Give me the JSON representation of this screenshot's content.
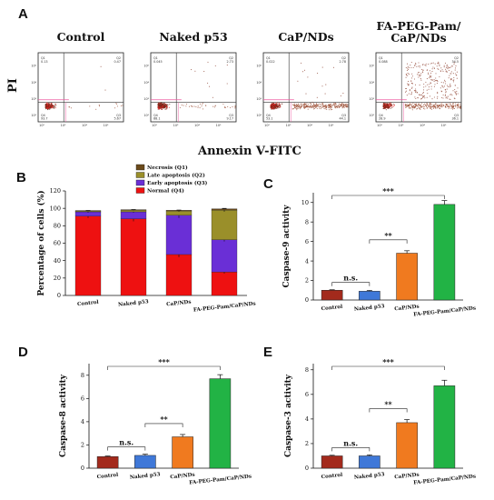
{
  "panels": {
    "A": "A",
    "B": "B",
    "C": "C",
    "D": "D",
    "E": "E"
  },
  "flow": {
    "x_label": "Annexin V-FITC",
    "y_label": "PI",
    "quadrant_labels": [
      "Q1",
      "Q2",
      "Q3",
      "Q4"
    ],
    "axis_ticks": [
      "10²",
      "10³",
      "10⁴",
      "10⁵"
    ],
    "plots": [
      {
        "title": "Control",
        "q1": "0.13",
        "q2": "0.47",
        "q3": "5.67",
        "q4": "93.7"
      },
      {
        "title": "Naked p53",
        "q1": "0.045",
        "q2": "2.73",
        "q3": "9.17",
        "q4": "88.1"
      },
      {
        "title": "CaP/NDs",
        "q1": "0.022",
        "q2": "2.78",
        "q3": "44.1",
        "q4": "53.1"
      },
      {
        "title": "FA-PEG-Pam/\nCaP/NDs",
        "q1": "0.088",
        "q2": "34.5",
        "q3": "36.1",
        "q4": "28.9"
      }
    ]
  },
  "colors": {
    "necrosis": "#6b4a1a",
    "late": "#9a8f2a",
    "early": "#6a2fd6",
    "normal": "#ee1111",
    "c1": "#a32a1c",
    "c2": "#3f78d8",
    "c3": "#f07a1f",
    "c4": "#22b345"
  },
  "chart_data": [
    {
      "type": "bar",
      "stacked": true,
      "panel": "B",
      "ylabel": "Percentage of cells (%)",
      "ylim": [
        0,
        120
      ],
      "yticks": [
        "0",
        "20",
        "40",
        "60",
        "80",
        "100",
        "120"
      ],
      "categories": [
        "Control",
        "Naked p53",
        "CaP/NDs",
        "FA-PEG-Pam/CaP/NDs"
      ],
      "series": [
        {
          "name": "Normal (Q4)",
          "values": [
            91,
            88,
            47,
            27
          ],
          "errors": [
            2,
            3,
            3,
            2
          ]
        },
        {
          "name": "Early apoptosis (Q3)",
          "values": [
            5,
            8,
            45,
            37
          ],
          "errors": [
            1,
            1,
            3,
            2
          ]
        },
        {
          "name": "Late apoptosis (Q2)",
          "values": [
            1,
            2,
            5,
            34
          ],
          "errors": [
            0.3,
            0.5,
            1,
            2
          ]
        },
        {
          "name": "Necrosis (Q1)",
          "values": [
            0.5,
            0.5,
            0.8,
            1.5
          ],
          "errors": [
            0.1,
            0.1,
            0.1,
            0.2
          ]
        }
      ],
      "legend": "top"
    },
    {
      "type": "bar",
      "panel": "C",
      "ylabel": "Caspase-9 activity",
      "ylim": [
        0,
        11
      ],
      "yticks": [
        "0",
        "2",
        "4",
        "6",
        "8",
        "10"
      ],
      "categories": [
        "Control",
        "Naked p53",
        "CaP/NDs",
        "FA-PEG-Pam/CaP/NDs"
      ],
      "values": [
        1.0,
        0.9,
        4.8,
        9.8
      ],
      "errors": [
        0.05,
        0.08,
        0.25,
        0.4
      ],
      "significance": [
        {
          "from": 1,
          "to": 2,
          "label": "**"
        },
        {
          "from": 0,
          "to": 1,
          "label": "n.s."
        },
        {
          "from": 0,
          "to": 3,
          "label": "***"
        }
      ]
    },
    {
      "type": "bar",
      "panel": "D",
      "ylabel": "Caspase-8 activity",
      "ylim": [
        0,
        9
      ],
      "yticks": [
        "0",
        "2",
        "4",
        "6",
        "8"
      ],
      "categories": [
        "Control",
        "Naked p53",
        "CaP/NDs",
        "FA-PEG-Pam/CaP/NDs"
      ],
      "values": [
        1.0,
        1.1,
        2.7,
        7.7
      ],
      "errors": [
        0.05,
        0.1,
        0.2,
        0.35
      ],
      "significance": [
        {
          "from": 1,
          "to": 2,
          "label": "**"
        },
        {
          "from": 0,
          "to": 1,
          "label": "n.s."
        },
        {
          "from": 0,
          "to": 3,
          "label": "***"
        }
      ]
    },
    {
      "type": "bar",
      "panel": "E",
      "ylabel": "Caspase-3 activity",
      "ylim": [
        0,
        8.5
      ],
      "yticks": [
        "0",
        "2",
        "4",
        "6",
        "8"
      ],
      "categories": [
        "Control",
        "Naked p53",
        "CaP/NDs",
        "FA-PEG-Pam/CaP/NDs"
      ],
      "values": [
        1.0,
        1.0,
        3.7,
        6.7
      ],
      "errors": [
        0.05,
        0.08,
        0.25,
        0.45
      ],
      "significance": [
        {
          "from": 1,
          "to": 2,
          "label": "**"
        },
        {
          "from": 0,
          "to": 1,
          "label": "n.s."
        },
        {
          "from": 0,
          "to": 3,
          "label": "***"
        }
      ]
    }
  ]
}
